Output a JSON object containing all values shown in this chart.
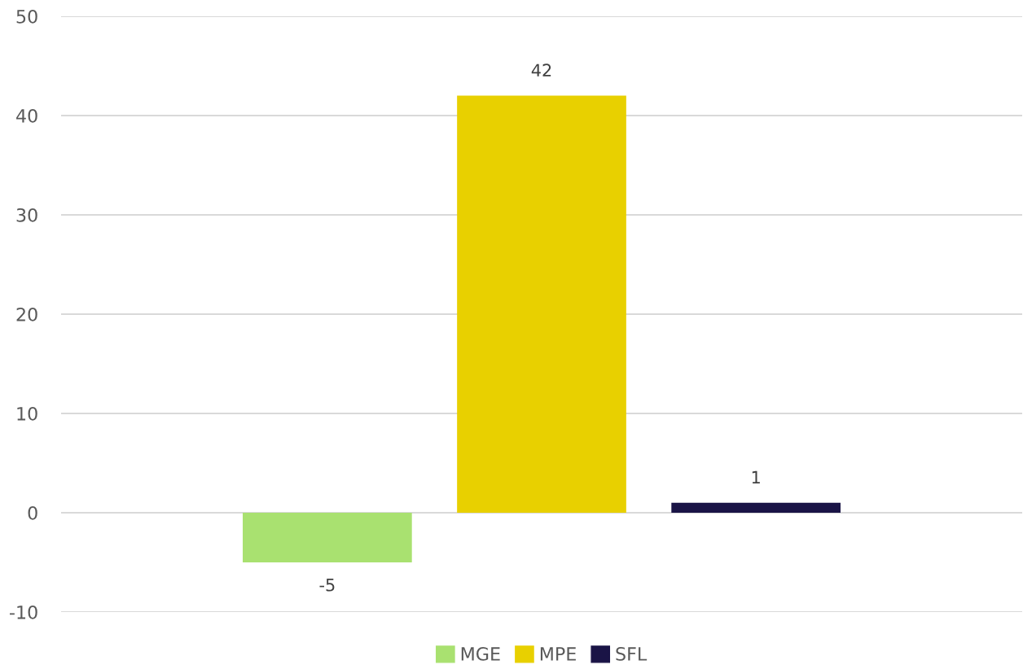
{
  "chart_data": {
    "type": "bar",
    "categories": [
      null
    ],
    "series": [
      {
        "name": "MGE",
        "color": "#a9e170",
        "values": [
          -5
        ]
      },
      {
        "name": "MPE",
        "color": "#e8d000",
        "values": [
          42
        ]
      },
      {
        "name": "SFL",
        "color": "#1a1446",
        "values": [
          1
        ]
      }
    ],
    "ylim": [
      -10,
      50
    ],
    "yticks": [
      -10,
      0,
      10,
      20,
      30,
      40,
      50
    ],
    "grid": "y",
    "legend": "bottom",
    "data_labels": true
  }
}
